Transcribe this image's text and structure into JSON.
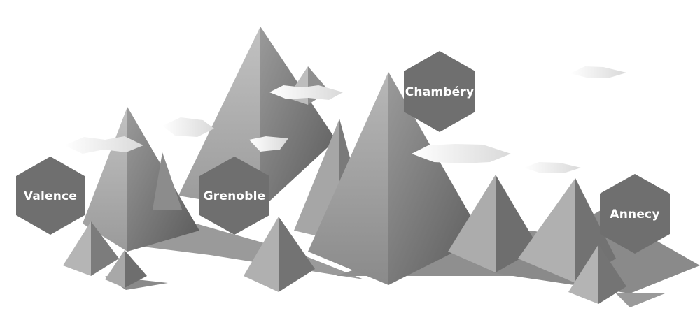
{
  "scene": {
    "description_role": "low-poly mountain illustration with city markers",
    "colors": {
      "hexagon": "#6f6f6f",
      "mountain_light": "#c8c8c8",
      "mountain_dark": "#5e5e5e",
      "shadow": "#7a7a7a",
      "cloud": "#e6e6e6",
      "label_text": "#ffffff"
    }
  },
  "cities": [
    {
      "id": "valence",
      "label": "Valence"
    },
    {
      "id": "grenoble",
      "label": "Grenoble"
    },
    {
      "id": "chambery",
      "label": "Chambéry"
    },
    {
      "id": "annecy",
      "label": "Annecy"
    }
  ]
}
